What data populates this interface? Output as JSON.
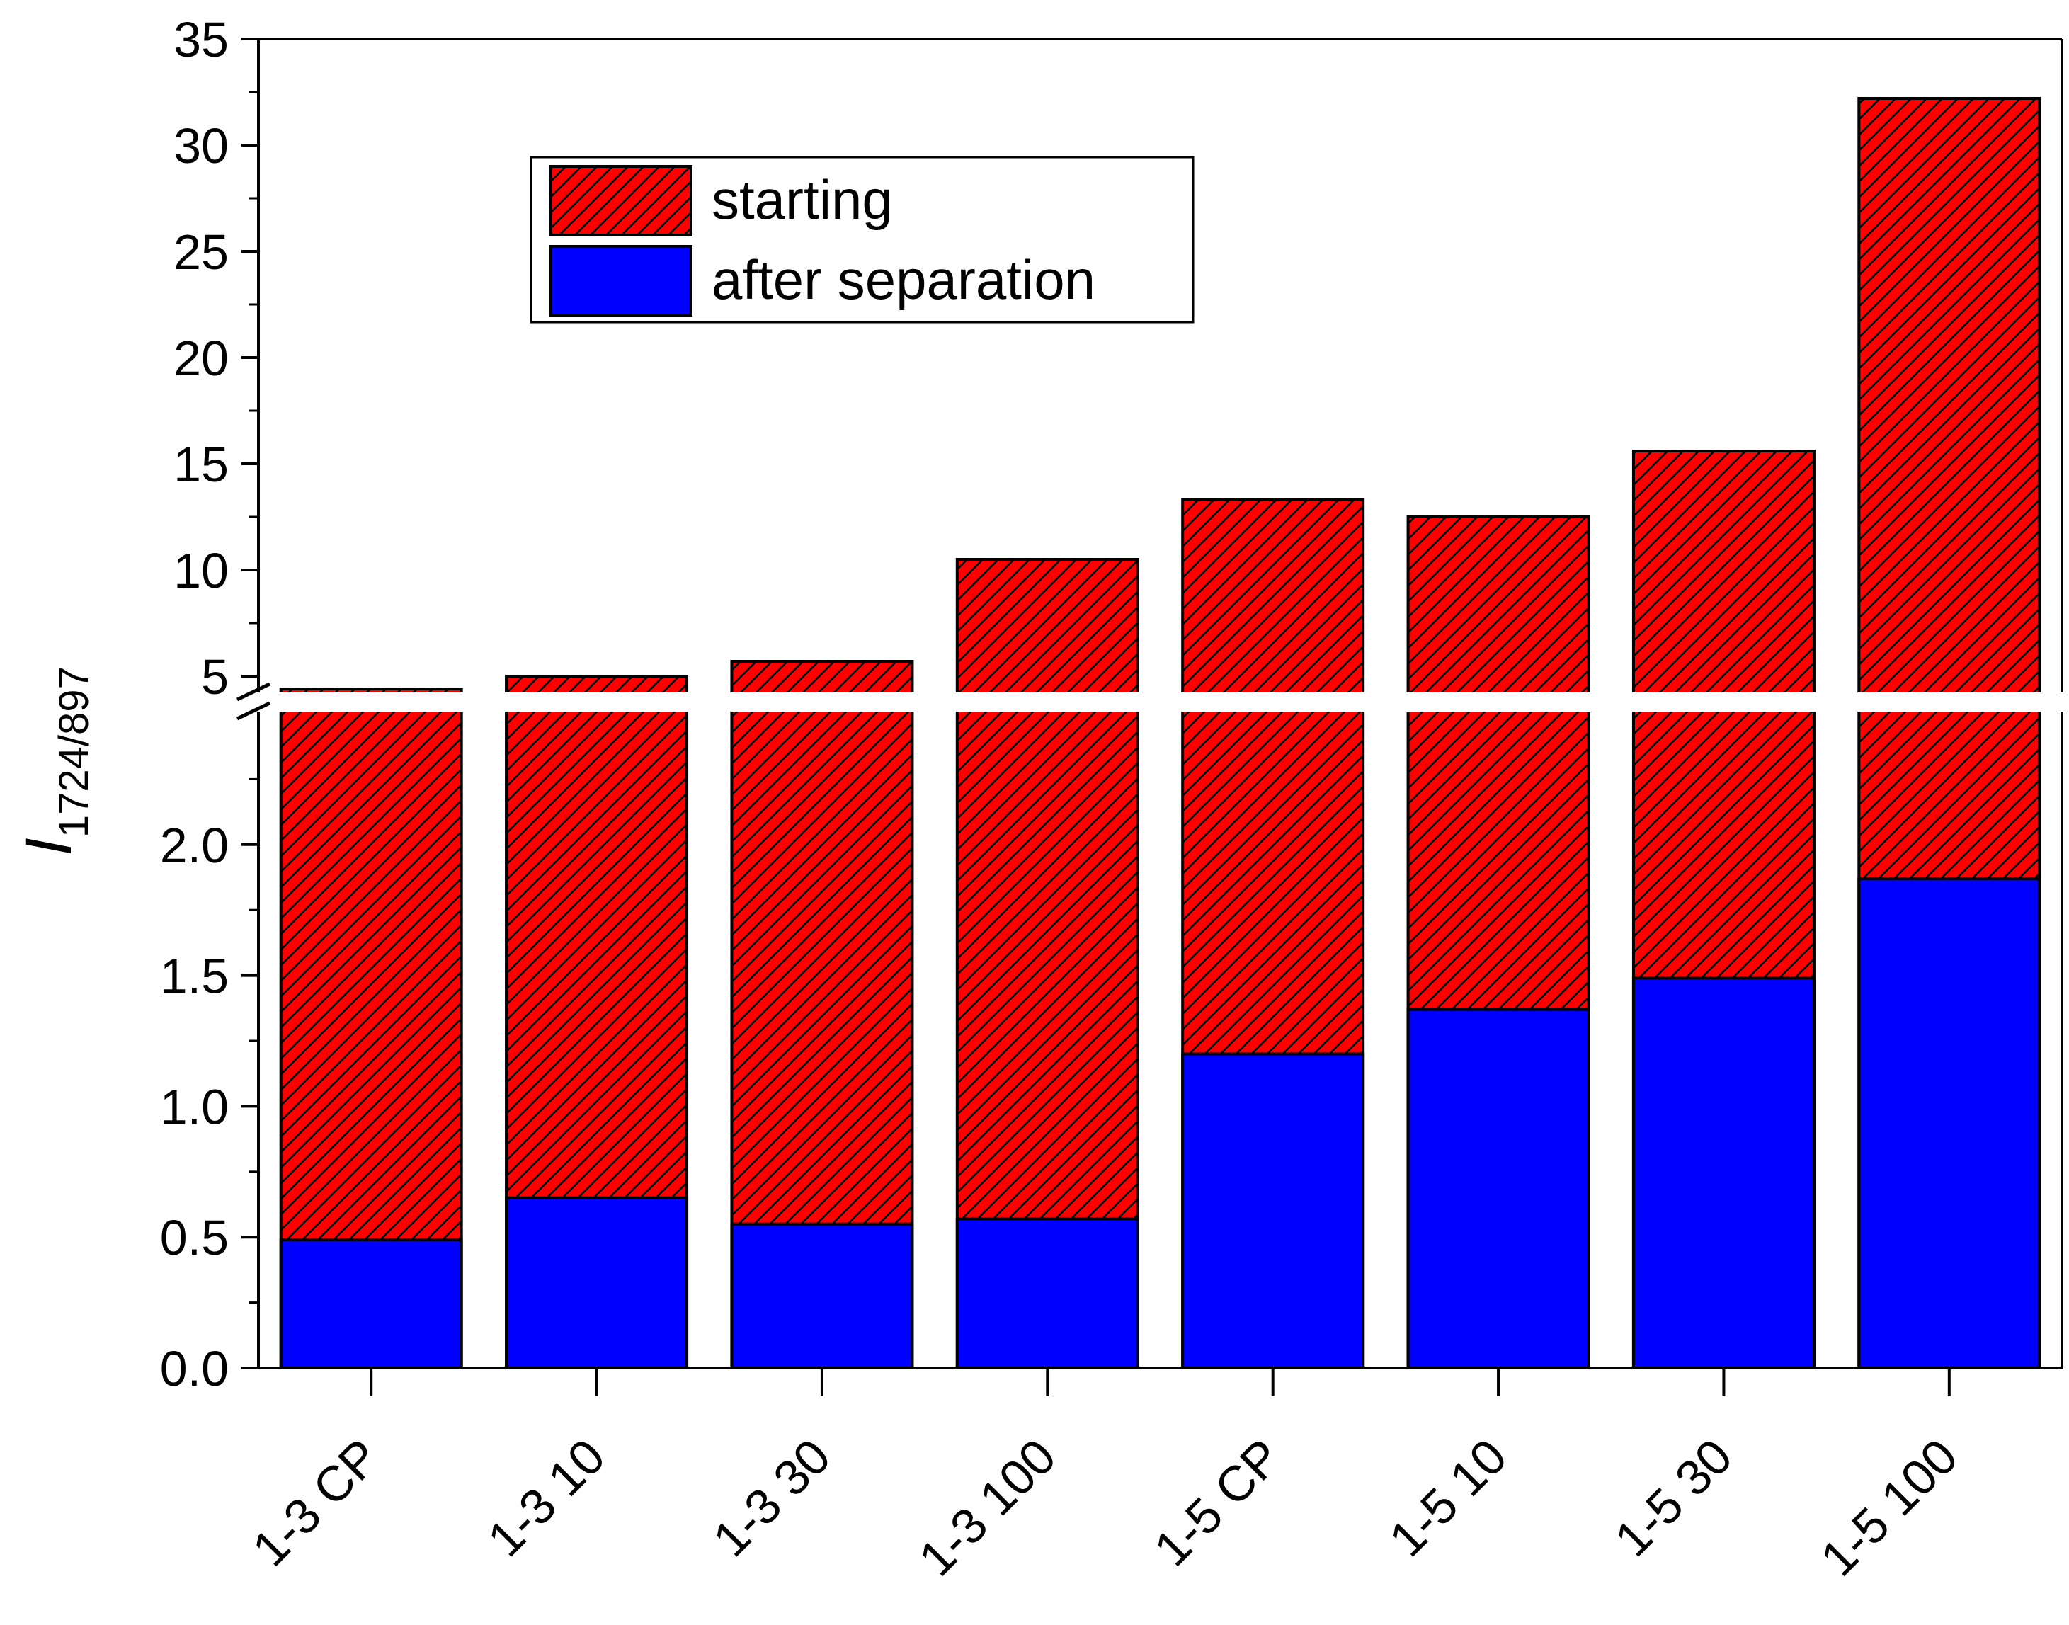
{
  "chart_data": {
    "type": "bar",
    "title": "",
    "xlabel": "",
    "ylabel": "I",
    "ylabel_subscript": "1724/897",
    "categories": [
      "1-3 CP",
      "1-3 10",
      "1-3 30",
      "1-3 100",
      "1-5 CP",
      "1-5 10",
      "1-5 30",
      "1-5 100"
    ],
    "series": [
      {
        "name": "starting",
        "values": [
          4.4,
          5.0,
          5.7,
          10.5,
          13.3,
          12.5,
          15.6,
          32.2
        ],
        "color": "#ff0000",
        "pattern": "diagonal-hatch"
      },
      {
        "name": "after separation",
        "values": [
          0.49,
          0.65,
          0.55,
          0.57,
          1.2,
          1.37,
          1.49,
          1.87
        ],
        "color": "#0000ff",
        "pattern": "solid"
      }
    ],
    "y_axis_break": true,
    "ylim_lower": [
      0,
      2.5
    ],
    "ylim_upper": [
      3.5,
      35
    ],
    "yticks_lower": [
      "0.0",
      "0.5",
      "1.0",
      "1.5",
      "2.0"
    ],
    "yticks_upper": [
      "5",
      "10",
      "15",
      "20",
      "25",
      "30",
      "35"
    ],
    "grid": false,
    "legend_position": "top-left",
    "x_tick_label_rotation": "-45deg"
  }
}
